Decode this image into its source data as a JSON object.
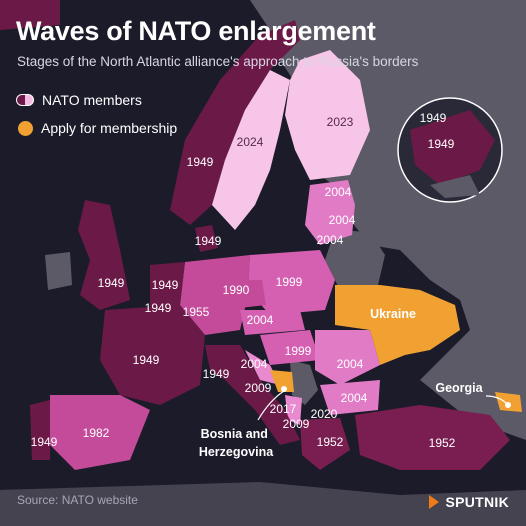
{
  "header": {
    "title": "Waves of NATO enlargement",
    "subtitle": "Stages of the North Atlantic alliance's approach to Russia's borders"
  },
  "legend": {
    "nato_members": "NATO members",
    "apply_for_membership": "Apply for membership"
  },
  "colors": {
    "background": "#1c1b2a",
    "russia_grey": "#5b5a66",
    "nato_1949": "#6b1a48",
    "nato_1952": "#7a1e52",
    "nato_1955_1982": "#c44b99",
    "nato_1999": "#d560b2",
    "nato_2004": "#e17bc6",
    "nato_2009_2020": "#e98ad0",
    "nato_2023_2024": "#f7c5e8",
    "applicant": "#f0a132"
  },
  "map": {
    "accession_years": {
      "norway": "1949",
      "denmark": "1949",
      "uk": "1949",
      "netherlands": "1949",
      "belgium": "1949",
      "france": "1949",
      "italy": "1949",
      "portugal": "1949",
      "germany": "1955",
      "spain": "1982",
      "poland": "1999",
      "czechia": "1990",
      "hungary": "1999",
      "slovakia": "2004",
      "slovenia": "2004",
      "romania": "2004",
      "bulgaria": "2004",
      "estonia": "2004",
      "latvia": "2004",
      "lithuania": "2004",
      "croatia": "2009",
      "albania": "2009",
      "montenegro": "2017",
      "north_macedonia": "2020",
      "greece": "1952",
      "turkey": "1952",
      "finland": "2023",
      "sweden": "2024"
    },
    "inset": {
      "canada": "1949",
      "usa": "1949"
    },
    "callouts": {
      "ukraine": "Ukraine",
      "georgia": "Georgia",
      "bosnia": "Bosnia and\nHerzegovina"
    }
  },
  "footer": {
    "source": "Source: NATO website",
    "brand": "SPUTNIK"
  }
}
